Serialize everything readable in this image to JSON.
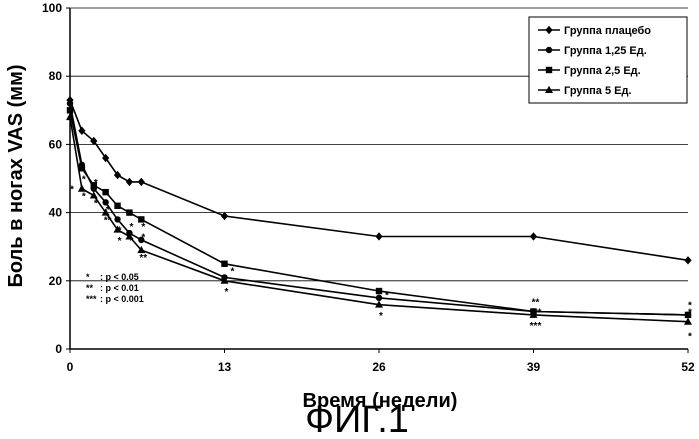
{
  "chart_data": {
    "type": "line",
    "xlabel": "Время (недели)",
    "ylabel": "Боль в ногах VAS (мм)",
    "xlim": [
      0,
      52
    ],
    "ylim": [
      0,
      100
    ],
    "x_ticks": [
      0,
      13,
      26,
      39,
      52
    ],
    "y_ticks": [
      0,
      20,
      40,
      60,
      80,
      100
    ],
    "grid": "horizontal",
    "legend_position": "top-right",
    "x": [
      0,
      1,
      2,
      3,
      4,
      5,
      6,
      13,
      26,
      39,
      52
    ],
    "series": [
      {
        "name": "Группа плацебо",
        "marker": "diamond",
        "values": [
          73,
          64,
          61,
          56,
          51,
          49,
          49,
          39,
          33,
          33,
          26
        ]
      },
      {
        "name": "Группа 1,25 Ед.",
        "marker": "circle",
        "values": [
          72,
          54,
          47,
          43,
          38,
          34,
          32,
          21,
          15,
          11,
          10
        ]
      },
      {
        "name": "Группа 2,5 Ед.",
        "marker": "square",
        "values": [
          70,
          53,
          48,
          46,
          42,
          40,
          38,
          25,
          17,
          11,
          10
        ]
      },
      {
        "name": "Группа 5 Ед.",
        "marker": "triangle",
        "values": [
          68,
          47,
          45,
          40,
          35,
          33,
          29,
          20,
          13,
          10,
          8
        ]
      }
    ],
    "significance_marks": [
      {
        "x": 0,
        "y": 47,
        "text": "*"
      },
      {
        "x": 1,
        "y": 50,
        "text": "*"
      },
      {
        "x": 1,
        "y": 45,
        "text": "*"
      },
      {
        "x": 2,
        "y": 49,
        "text": "*"
      },
      {
        "x": 2,
        "y": 43,
        "text": "*"
      },
      {
        "x": 3,
        "y": 41,
        "text": "*"
      },
      {
        "x": 3,
        "y": 38,
        "text": "**"
      },
      {
        "x": 4,
        "y": 35,
        "text": "*"
      },
      {
        "x": 4,
        "y": 32,
        "text": "*"
      },
      {
        "x": 5,
        "y": 36,
        "text": "*"
      },
      {
        "x": 5,
        "y": 32,
        "text": "*"
      },
      {
        "x": 6,
        "y": 36,
        "text": "*"
      },
      {
        "x": 6,
        "y": 33,
        "text": "*"
      },
      {
        "x": 6,
        "y": 27,
        "text": "**"
      },
      {
        "x": 13.5,
        "y": 23,
        "text": "*"
      },
      {
        "x": 13,
        "y": 17,
        "text": "*"
      },
      {
        "x": 26.5,
        "y": 16,
        "text": "*"
      },
      {
        "x": 26,
        "y": 10,
        "text": "*"
      },
      {
        "x": 39,
        "y": 14,
        "text": "**"
      },
      {
        "x": 39,
        "y": 11,
        "text": "***"
      },
      {
        "x": 39,
        "y": 7,
        "text": "***"
      },
      {
        "x": 52,
        "y": 13,
        "text": "*"
      },
      {
        "x": 52,
        "y": 11,
        "text": "*"
      },
      {
        "x": 52,
        "y": 4,
        "text": "*"
      }
    ],
    "significance_legend": [
      {
        "symbol": "*",
        "text": ": p < 0.05"
      },
      {
        "symbol": "**",
        "text": ": p < 0.01"
      },
      {
        "symbol": "***",
        "text": ": p < 0.001"
      }
    ]
  },
  "figure_caption": "ФИГ.1"
}
